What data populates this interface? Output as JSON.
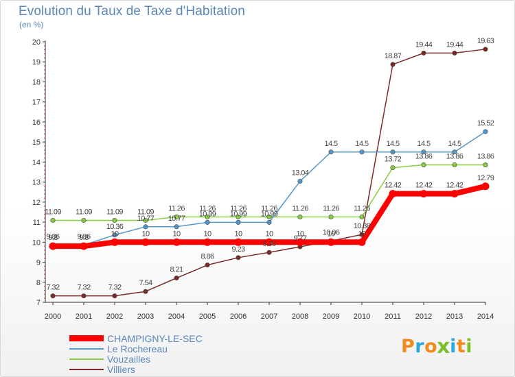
{
  "chart_data": {
    "type": "line",
    "title": "Evolution du Taux de Taxe d'Habitation",
    "subtitle": "(en %)",
    "x": [
      "2000",
      "2001",
      "2002",
      "2003",
      "2004",
      "2005",
      "2006",
      "2007",
      "2008",
      "2009",
      "2010",
      "2011",
      "2012",
      "2013",
      "2014"
    ],
    "ylim": [
      7,
      20
    ],
    "y_ticks": [
      "7",
      "8",
      "9",
      "10",
      "11",
      "12",
      "13",
      "14",
      "15",
      "16",
      "17",
      "18",
      "19",
      "20"
    ],
    "grid": false,
    "legend_position": "bottom-left",
    "series": [
      {
        "name": "CHAMPIGNY-LE-SEC",
        "color": "#ff0000",
        "values": [
          9.8,
          9.8,
          10,
          10,
          10,
          10,
          10,
          10,
          10,
          10,
          10,
          12.42,
          12.42,
          12.42,
          12.79
        ],
        "labels": [
          "9.8",
          "9.8",
          "10",
          "10",
          "10",
          "10",
          "10",
          "10",
          "10",
          "10",
          "10",
          "12.42",
          "12.42",
          "12.42",
          "12.79"
        ]
      },
      {
        "name": "Le Rochereau",
        "color": "#5599cc",
        "values": [
          9.86,
          9.86,
          10.36,
          10.77,
          10.77,
          10.99,
          10.99,
          10.99,
          13.04,
          14.5,
          14.5,
          14.5,
          14.5,
          14.5,
          15.52
        ],
        "labels": [
          "9.86",
          "9.86",
          "10.36",
          "10.77",
          "10.77",
          "10.99",
          "10.99",
          "10.99",
          "13.04",
          "14.5",
          "14.5",
          "14.5",
          "14.5",
          "14.5",
          "15.52"
        ]
      },
      {
        "name": "Vouzailles",
        "color": "#88cc44",
        "values": [
          11.09,
          11.09,
          11.09,
          11.09,
          11.26,
          11.26,
          11.26,
          11.26,
          11.26,
          11.26,
          11.26,
          13.72,
          13.86,
          13.86,
          13.86
        ],
        "labels": [
          "11.09",
          "11.09",
          "11.09",
          "11.09",
          "11.26",
          "11.26",
          "11.26",
          "11.26",
          "11.26",
          "11.26",
          "11.26",
          "13.72",
          "13.86",
          "13.86",
          "13.86"
        ]
      },
      {
        "name": "Villiers",
        "color": "#7a2a2a",
        "values": [
          7.32,
          7.32,
          7.32,
          7.54,
          8.21,
          8.86,
          9.23,
          9.49,
          9.77,
          10.06,
          10.38,
          18.87,
          19.44,
          19.44,
          19.63
        ],
        "labels": [
          "7.32",
          "7.32",
          "7.32",
          "7.54",
          "8.21",
          "8.86",
          "9.23",
          "9.49",
          "9.77",
          "10.06",
          "10.38",
          "18.87",
          "19.44",
          "19.44",
          "19.63"
        ]
      }
    ]
  },
  "logo": {
    "letters": [
      "P",
      "r",
      "o",
      "x",
      "i",
      "t",
      "i"
    ],
    "colors": [
      "#f08a1c",
      "#27a8e0",
      "#f08a1c",
      "#7bbf2a",
      "#27a8e0",
      "#f08a1c",
      "#7bbf2a"
    ]
  }
}
